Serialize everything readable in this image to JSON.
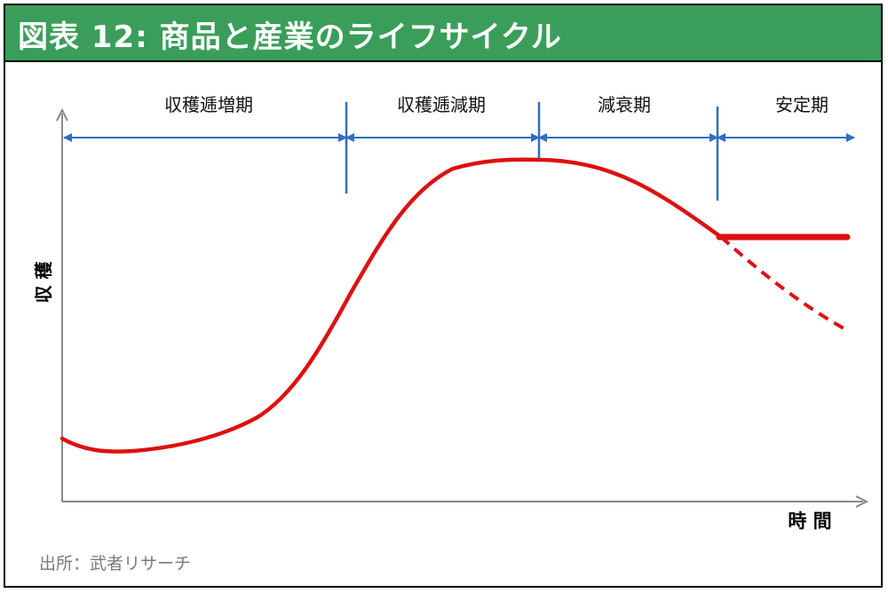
{
  "title": "図表 12: 商品と産業のライフサイクル",
  "source": "出所：武者リサーチ",
  "colors": {
    "header_bg": "#3a9e5a",
    "curve": "#dd1111",
    "arrow": "#2e6fc0"
  },
  "chart_data": {
    "type": "line",
    "title": "図表 12: 商品と産業のライフサイクル",
    "xlabel": "時 間",
    "ylabel": "収 穫",
    "x_ticks_shown": false,
    "y_ticks_shown": false,
    "grid": false,
    "phases": [
      {
        "label": "収穫逓増期"
      },
      {
        "label": "収穫逓減期"
      },
      {
        "label": "減衰期"
      },
      {
        "label": "安定期"
      }
    ],
    "series": [
      {
        "style": "solid"
      },
      {
        "style": "solid",
        "note": "stable branch"
      },
      {
        "style": "dashed",
        "note": "declining branch"
      }
    ]
  }
}
